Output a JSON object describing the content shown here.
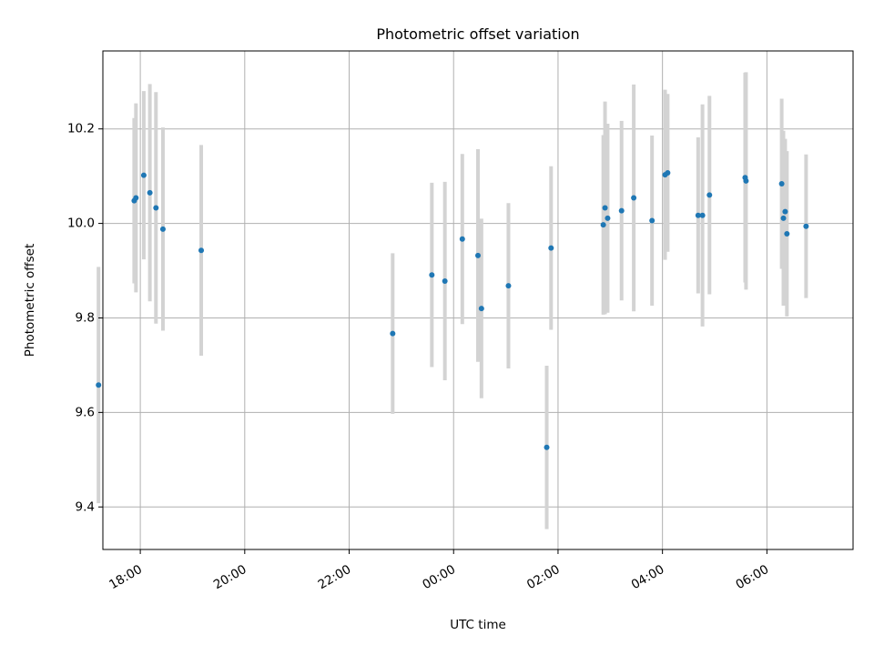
{
  "chart_data": {
    "type": "scatter",
    "title": "Photometric offset variation",
    "xlabel": "UTC time",
    "ylabel": "Photometric offset",
    "x_unit": "UTC time (HH:MM)",
    "xlim": [
      "17:17",
      "07:39 (+1 day)"
    ],
    "ylim": [
      9.31,
      10.365
    ],
    "xticks": [
      "18:00",
      "20:00",
      "22:00",
      "00:00",
      "02:00",
      "04:00",
      "06:00"
    ],
    "yticks": [
      "9.4",
      "9.6",
      "9.8",
      "10.0",
      "10.2"
    ],
    "grid": true,
    "series": [
      {
        "marker_color": "#1f77b4",
        "errorbar_color": "#d3d3d3",
        "points": [
          {
            "t": "17:12",
            "y": 9.658,
            "err": 0.25
          },
          {
            "t": "17:53",
            "y": 10.048,
            "err": 0.175
          },
          {
            "t": "17:55",
            "y": 10.054,
            "err": 0.2
          },
          {
            "t": "18:04",
            "y": 10.102,
            "err": 0.178
          },
          {
            "t": "18:11",
            "y": 10.065,
            "err": 0.23
          },
          {
            "t": "18:18",
            "y": 10.033,
            "err": 0.245
          },
          {
            "t": "18:26",
            "y": 9.988,
            "err": 0.215
          },
          {
            "t": "19:10",
            "y": 9.943,
            "err": 0.223
          },
          {
            "t": "22:50",
            "y": 9.767,
            "err": 0.17
          },
          {
            "t": "23:35",
            "y": 9.891,
            "err": 0.195
          },
          {
            "t": "23:50",
            "y": 9.878,
            "err": 0.21
          },
          {
            "t": "00:10",
            "y": 9.967,
            "err": 0.18
          },
          {
            "t": "00:28",
            "y": 9.932,
            "err": 0.225
          },
          {
            "t": "00:32",
            "y": 9.82,
            "err": 0.19
          },
          {
            "t": "01:03",
            "y": 9.868,
            "err": 0.175
          },
          {
            "t": "01:47",
            "y": 9.526,
            "err": 0.173
          },
          {
            "t": "01:52",
            "y": 9.948,
            "err": 0.173
          },
          {
            "t": "02:52",
            "y": 9.997,
            "err": 0.19
          },
          {
            "t": "02:54",
            "y": 10.033,
            "err": 0.225
          },
          {
            "t": "02:57",
            "y": 10.011,
            "err": 0.2
          },
          {
            "t": "03:13",
            "y": 10.027,
            "err": 0.19
          },
          {
            "t": "03:27",
            "y": 10.054,
            "err": 0.24
          },
          {
            "t": "03:48",
            "y": 10.006,
            "err": 0.18
          },
          {
            "t": "04:03",
            "y": 10.103,
            "err": 0.18
          },
          {
            "t": "04:06",
            "y": 10.107,
            "err": 0.167
          },
          {
            "t": "04:41",
            "y": 10.017,
            "err": 0.165
          },
          {
            "t": "04:46",
            "y": 10.017,
            "err": 0.235
          },
          {
            "t": "04:54",
            "y": 10.06,
            "err": 0.21
          },
          {
            "t": "05:35",
            "y": 10.097,
            "err": 0.222
          },
          {
            "t": "05:36",
            "y": 10.09,
            "err": 0.23
          },
          {
            "t": "06:17",
            "y": 10.084,
            "err": 0.18
          },
          {
            "t": "06:19",
            "y": 10.011,
            "err": 0.185
          },
          {
            "t": "06:21",
            "y": 10.025,
            "err": 0.154
          },
          {
            "t": "06:23",
            "y": 9.978,
            "err": 0.175
          },
          {
            "t": "06:45",
            "y": 9.994,
            "err": 0.152
          }
        ]
      }
    ]
  }
}
